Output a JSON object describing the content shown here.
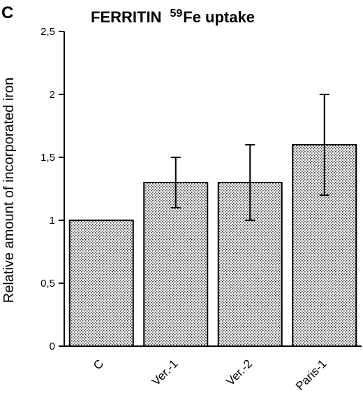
{
  "panel_label": "C",
  "chart_data": {
    "type": "bar",
    "title_main": "FERRITIN",
    "title_superscript": "59",
    "title_rest": "Fe uptake",
    "ylabel": "Relative amount of  incorporated iron",
    "xlabel": "",
    "ylim": [
      0,
      2.5
    ],
    "yticks": [
      {
        "value": 0,
        "label": "0"
      },
      {
        "value": 0.5,
        "label": "0,5"
      },
      {
        "value": 1,
        "label": "1"
      },
      {
        "value": 1.5,
        "label": "1,5"
      },
      {
        "value": 2,
        "label": "2"
      },
      {
        "value": 2.5,
        "label": "2,5"
      }
    ],
    "categories": [
      "C",
      "Ver.-1",
      "Ver.-2",
      "Paris-1"
    ],
    "values": [
      1.0,
      1.3,
      1.3,
      1.6
    ],
    "error_low": [
      null,
      1.1,
      1.0,
      1.2
    ],
    "error_high": [
      null,
      1.5,
      1.6,
      2.0
    ],
    "bar_pattern": "dotted",
    "grid": false,
    "legend": "none"
  }
}
